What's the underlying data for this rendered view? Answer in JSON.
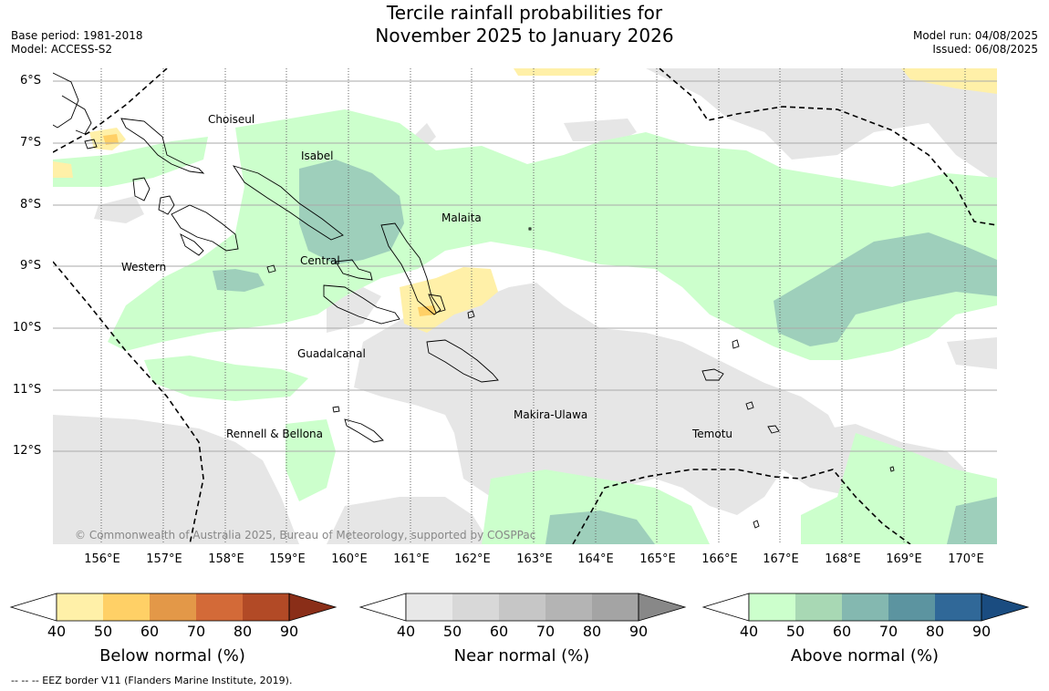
{
  "title_line1": "Tercile rainfall probabilities for",
  "title_line2": "November 2025 to January 2026",
  "base_period": "Base period: 1981-2018",
  "model": "Model: ACCESS-S2",
  "model_run": "Model run: 04/08/2025",
  "issued": "Issued: 06/08/2025",
  "lat_labels": [
    "6°S",
    "7°S",
    "8°S",
    "9°S",
    "10°S",
    "11°S",
    "12°S"
  ],
  "lon_labels": [
    "156°E",
    "157°E",
    "158°E",
    "159°E",
    "160°E",
    "161°E",
    "162°E",
    "163°E",
    "164°E",
    "165°E",
    "166°E",
    "167°E",
    "168°E",
    "169°E",
    "170°E"
  ],
  "provinces": [
    "Choiseul",
    "Isabel",
    "Malaita",
    "Western",
    "Central",
    "Guadalcanal",
    "Makira-Ulawa",
    "Rennell & Bellona",
    "Temotu"
  ],
  "copyright": "© Commonwealth of Australia 2025, Bureau of Meteorology, supported by COSPPac",
  "colorbars": [
    {
      "title": "Below normal (%)",
      "ticks": [
        "40",
        "50",
        "60",
        "70",
        "80",
        "90"
      ],
      "colors": [
        "#fff0a8",
        "#ffd066",
        "#e39848",
        "#d36a38",
        "#b24a26",
        "#8a2e18"
      ]
    },
    {
      "title": "Near normal (%)",
      "ticks": [
        "40",
        "50",
        "60",
        "70",
        "80",
        "90"
      ],
      "colors": [
        "#e8e8e8",
        "#d8d8d8",
        "#c6c6c6",
        "#b4b4b4",
        "#a4a4a4",
        "#888888"
      ]
    },
    {
      "title": "Above normal (%)",
      "ticks": [
        "40",
        "50",
        "60",
        "70",
        "80",
        "90"
      ],
      "colors": [
        "#ccffcc",
        "#a8d8b4",
        "#84b8b0",
        "#5c94a0",
        "#306898",
        "#1a4c80"
      ]
    }
  ],
  "footnote": "--  --  -- EEZ border V11 (Flanders Marine Institute, 2019).",
  "colors": {
    "near_normal_fill": "#e6e6e6",
    "above_normal_fill": "#ccffcc",
    "above_normal_strong_fill": "#9ecfbb",
    "below_normal_fill": "#fff0a8",
    "below_normal_strong_fill": "#ffd066"
  }
}
